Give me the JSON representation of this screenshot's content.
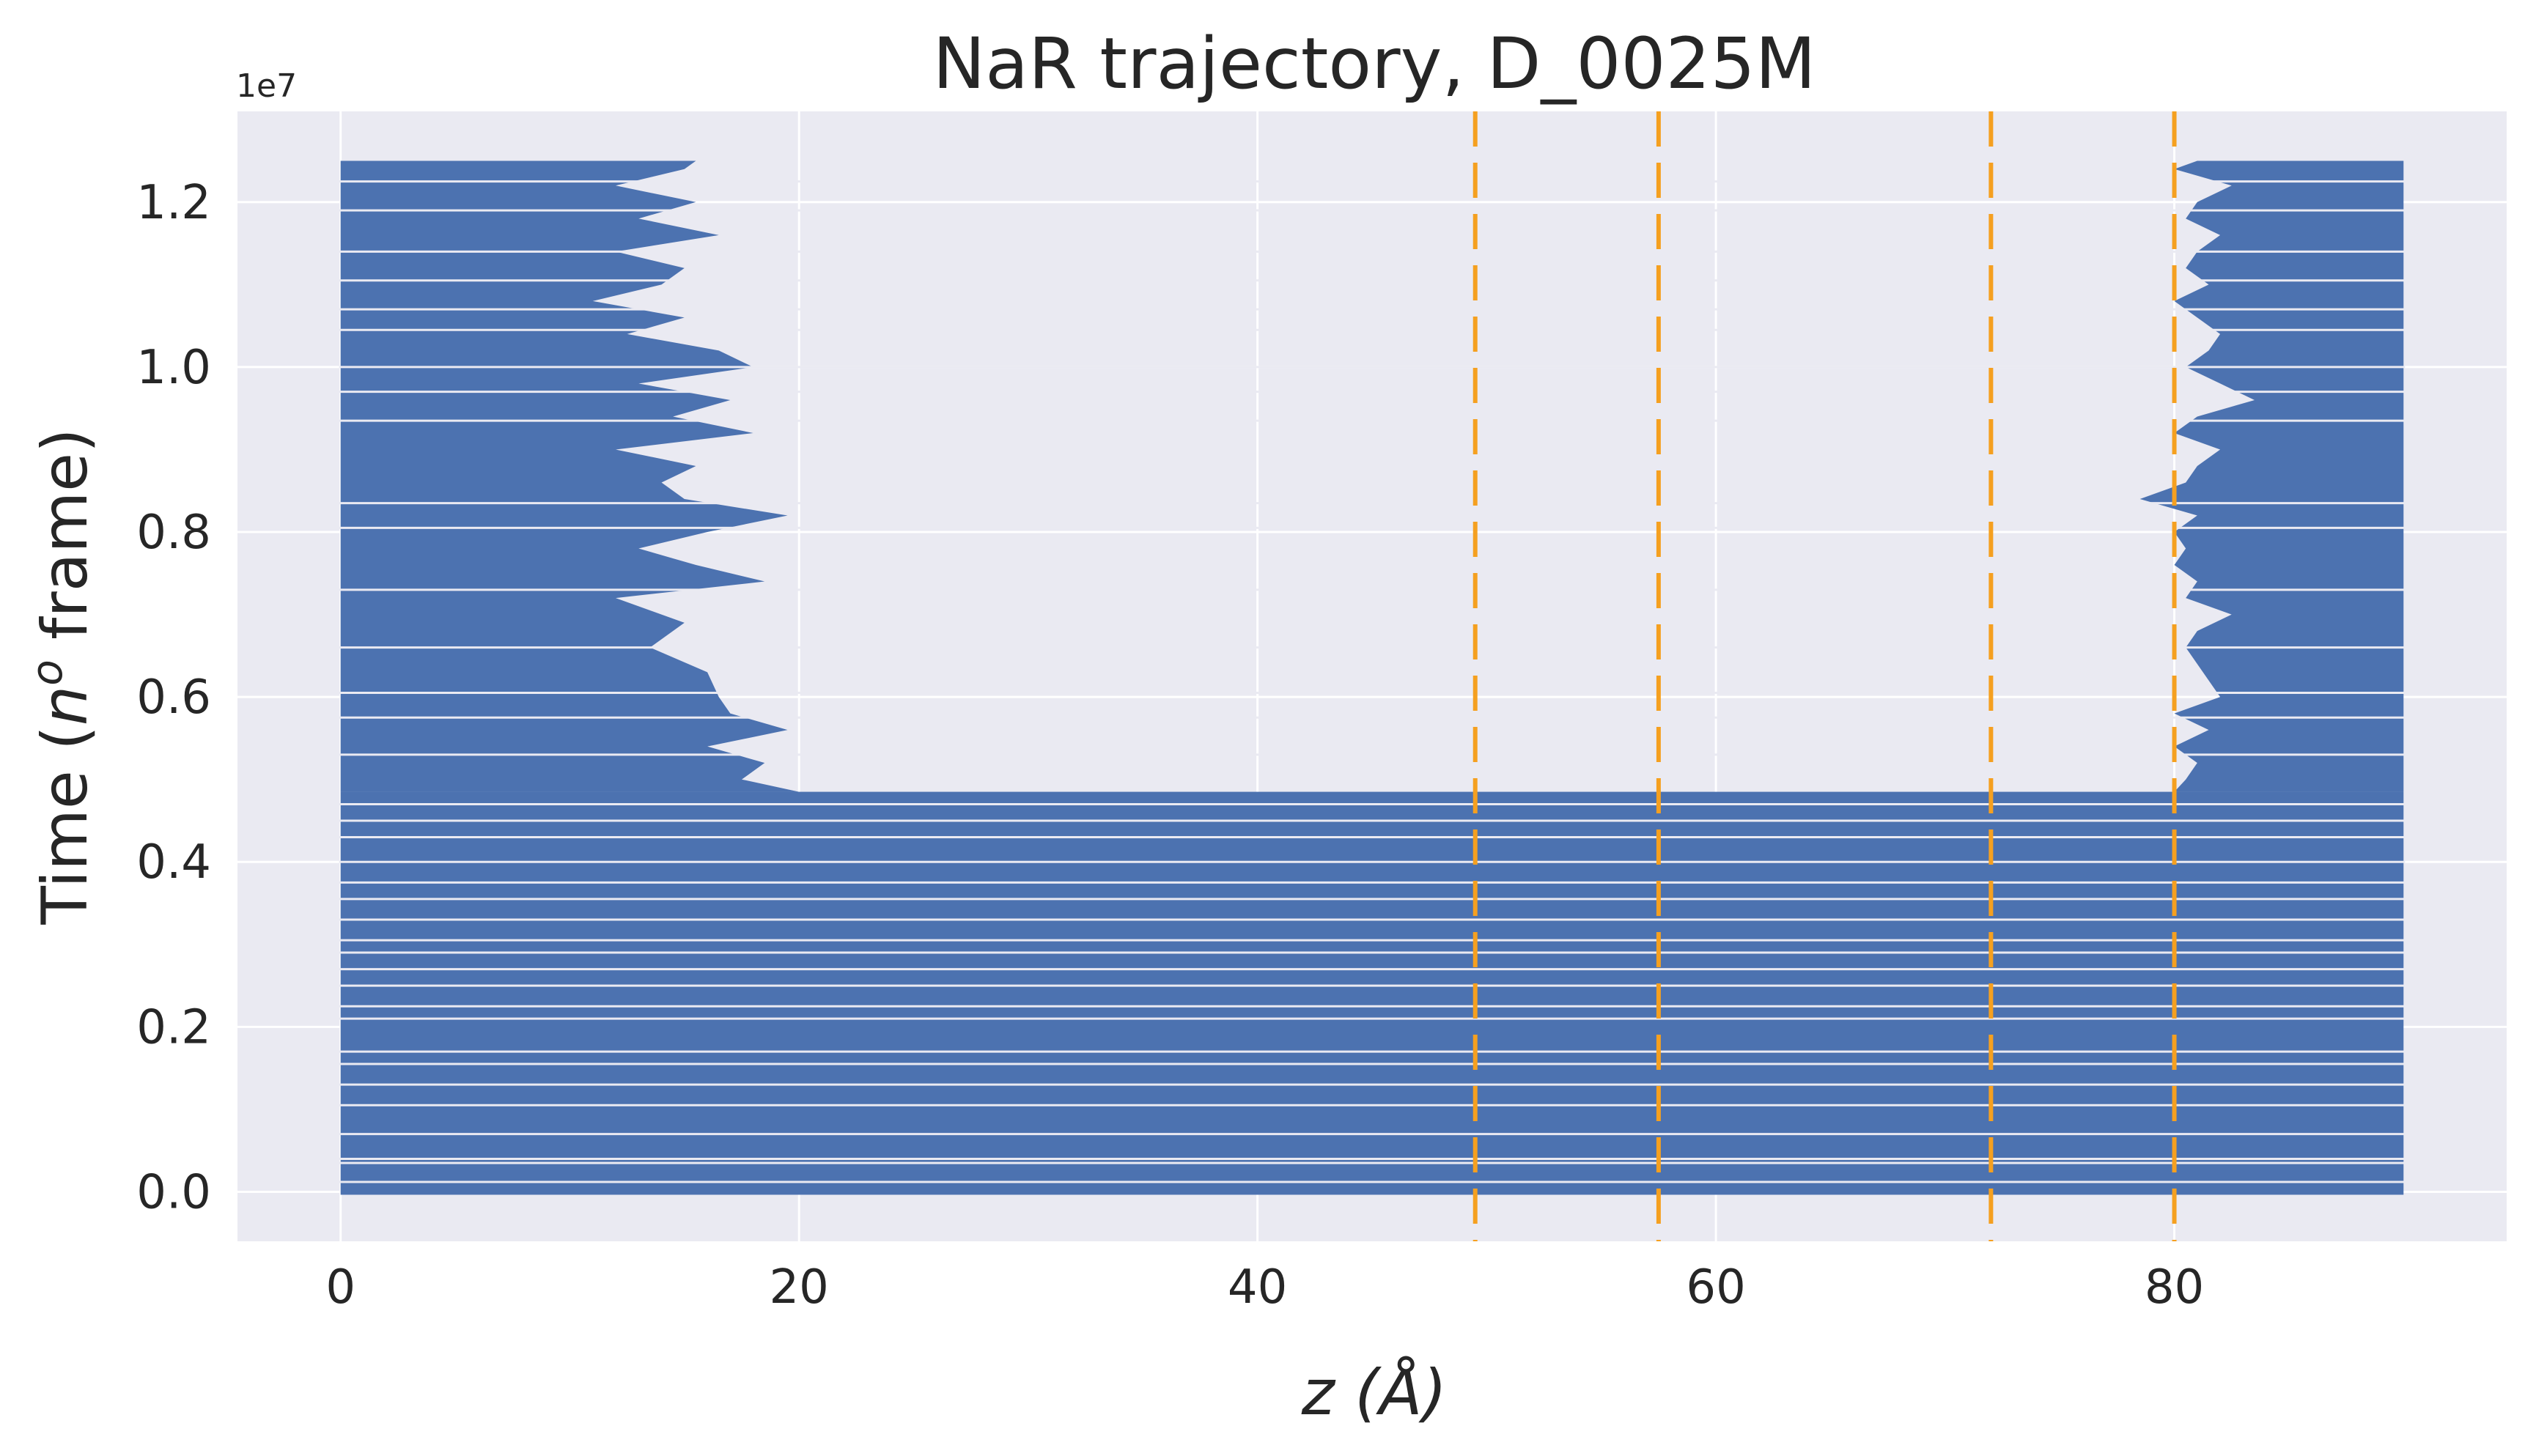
{
  "chart_data": {
    "type": "scatter",
    "title": "NaR trajectory, D_0025M",
    "xlabel": "z (Å)",
    "ylabel_prefix": "Time (",
    "ylabel_n": "n",
    "ylabel_o": "o",
    "ylabel_suffix": " frame)",
    "y_offset_label": "1e7",
    "xlim": [
      -4.5,
      94.5
    ],
    "ylim": [
      -0.06,
      1.31
    ],
    "y_scale_factor": 10000000,
    "x_ticks": [
      0,
      20,
      40,
      60,
      80
    ],
    "y_ticks": [
      0.0,
      0.2,
      0.4,
      0.6,
      0.8,
      1.0,
      1.2
    ],
    "x_tick_labels": [
      "0",
      "20",
      "40",
      "60",
      "80"
    ],
    "y_tick_labels": [
      "0.0",
      "0.2",
      "0.4",
      "0.6",
      "0.8",
      "1.0",
      "1.2"
    ],
    "grid": true,
    "background": "#eaeaf2",
    "series_color": "#4c72b0",
    "reference_lines": {
      "color": "#f5a020",
      "style": "dashed",
      "x": [
        49.5,
        57.5,
        72.0,
        80.0
      ]
    },
    "full_occupancy_until": 0.485,
    "full_occupancy_x_range": [
      0,
      90
    ],
    "left_edge_trace": [
      [
        0.485,
        20.0
      ],
      [
        0.5,
        17.5
      ],
      [
        0.52,
        18.5
      ],
      [
        0.54,
        16.0
      ],
      [
        0.56,
        19.5
      ],
      [
        0.58,
        17.0
      ],
      [
        0.6,
        16.5
      ],
      [
        0.63,
        16.0
      ],
      [
        0.66,
        13.5
      ],
      [
        0.69,
        15.0
      ],
      [
        0.72,
        12.0
      ],
      [
        0.74,
        18.5
      ],
      [
        0.76,
        15.5
      ],
      [
        0.78,
        13.0
      ],
      [
        0.8,
        16.0
      ],
      [
        0.82,
        19.5
      ],
      [
        0.84,
        15.0
      ],
      [
        0.86,
        14.0
      ],
      [
        0.88,
        15.5
      ],
      [
        0.9,
        12.0
      ],
      [
        0.92,
        18.0
      ],
      [
        0.94,
        14.5
      ],
      [
        0.96,
        17.0
      ],
      [
        0.98,
        13.0
      ],
      [
        1.0,
        18.0
      ],
      [
        1.02,
        16.5
      ],
      [
        1.04,
        12.5
      ],
      [
        1.06,
        15.0
      ],
      [
        1.08,
        11.0
      ],
      [
        1.1,
        14.0
      ],
      [
        1.12,
        15.0
      ],
      [
        1.14,
        12.0
      ],
      [
        1.16,
        16.5
      ],
      [
        1.18,
        13.0
      ],
      [
        1.2,
        15.5
      ],
      [
        1.22,
        12.0
      ],
      [
        1.24,
        15.0
      ],
      [
        1.25,
        15.5
      ]
    ],
    "right_edge_trace": [
      [
        0.485,
        80.0
      ],
      [
        0.5,
        80.5
      ],
      [
        0.52,
        81.0
      ],
      [
        0.54,
        80.0
      ],
      [
        0.56,
        81.5
      ],
      [
        0.58,
        80.0
      ],
      [
        0.6,
        82.0
      ],
      [
        0.62,
        81.5
      ],
      [
        0.64,
        81.0
      ],
      [
        0.66,
        80.5
      ],
      [
        0.68,
        81.0
      ],
      [
        0.7,
        82.5
      ],
      [
        0.72,
        80.5
      ],
      [
        0.74,
        81.0
      ],
      [
        0.76,
        80.0
      ],
      [
        0.78,
        80.5
      ],
      [
        0.8,
        80.0
      ],
      [
        0.82,
        81.0
      ],
      [
        0.84,
        78.5
      ],
      [
        0.86,
        80.5
      ],
      [
        0.88,
        81.0
      ],
      [
        0.9,
        82.0
      ],
      [
        0.92,
        80.0
      ],
      [
        0.94,
        81.0
      ],
      [
        0.96,
        83.5
      ],
      [
        0.98,
        82.0
      ],
      [
        1.0,
        80.5
      ],
      [
        1.02,
        81.5
      ],
      [
        1.04,
        82.0
      ],
      [
        1.06,
        81.0
      ],
      [
        1.08,
        80.0
      ],
      [
        1.1,
        81.5
      ],
      [
        1.12,
        80.5
      ],
      [
        1.14,
        81.0
      ],
      [
        1.16,
        82.0
      ],
      [
        1.18,
        80.5
      ],
      [
        1.2,
        81.0
      ],
      [
        1.22,
        82.5
      ],
      [
        1.24,
        80.0
      ],
      [
        1.25,
        81.0
      ]
    ],
    "gaps": [
      0.012,
      0.035,
      0.04,
      0.07,
      0.105,
      0.13,
      0.155,
      0.17,
      0.21,
      0.225,
      0.25,
      0.27,
      0.29,
      0.305,
      0.33,
      0.355,
      0.375,
      0.4,
      0.43,
      0.45,
      0.47,
      0.53,
      0.575,
      0.605,
      0.66,
      0.73,
      0.805,
      0.835,
      0.935,
      0.97,
      1.0,
      1.045,
      1.07,
      1.105,
      1.14,
      1.19,
      1.225
    ]
  }
}
